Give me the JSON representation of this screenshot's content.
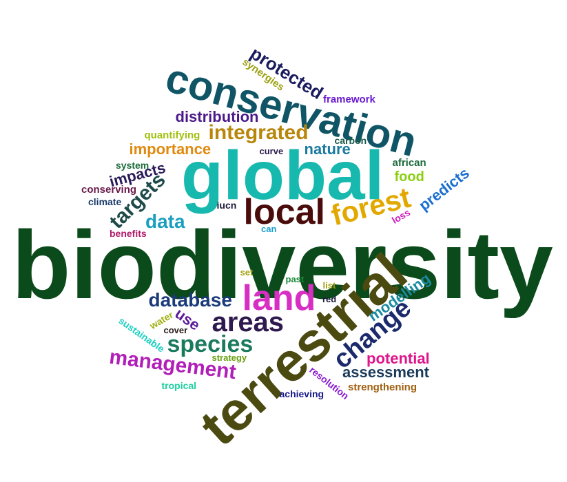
{
  "words": [
    {
      "text": "biodiversity",
      "color": "#0b4a1a"
    },
    {
      "text": "terrestrial",
      "color": "#4b4a10"
    },
    {
      "text": "global",
      "color": "#17b8ae"
    },
    {
      "text": "conservation",
      "color": "#0f5566"
    },
    {
      "text": "land",
      "color": "#d72fc3"
    },
    {
      "text": "local",
      "color": "#4a0b0b"
    },
    {
      "text": "areas",
      "color": "#2e1a4e"
    },
    {
      "text": "forest",
      "color": "#e3a800"
    },
    {
      "text": "change",
      "color": "#1a2a6b"
    },
    {
      "text": "species",
      "color": "#1a7a5e"
    },
    {
      "text": "management",
      "color": "#b11fb8"
    },
    {
      "text": "integrated",
      "color": "#b8860b"
    },
    {
      "text": "database",
      "color": "#1a3a7a"
    },
    {
      "text": "protected",
      "color": "#1a1a5e"
    },
    {
      "text": "targets",
      "color": "#1f4a4a"
    },
    {
      "text": "data",
      "color": "#1a9fbf"
    },
    {
      "text": "distribution",
      "color": "#4a1a8a"
    },
    {
      "text": "modelling",
      "color": "#1a8aa0"
    },
    {
      "text": "assessment",
      "color": "#1a3a5a"
    },
    {
      "text": "potential",
      "color": "#e0148a"
    },
    {
      "text": "predicts",
      "color": "#1a6fd0"
    },
    {
      "text": "importance",
      "color": "#e08a10"
    },
    {
      "text": "nature",
      "color": "#1a7aa0"
    },
    {
      "text": "impacts",
      "color": "#2a1a5a"
    },
    {
      "text": "use",
      "color": "#5a1a9a"
    },
    {
      "text": "food",
      "color": "#8ad010"
    },
    {
      "text": "framework",
      "color": "#6a1ad0"
    },
    {
      "text": "synergies",
      "color": "#9aa010"
    },
    {
      "text": "quantifying",
      "color": "#a0c010"
    },
    {
      "text": "carbon",
      "color": "#1a5a4a"
    },
    {
      "text": "curve",
      "color": "#2a1a4a"
    },
    {
      "text": "african",
      "color": "#1a6a3a"
    },
    {
      "text": "system",
      "color": "#1a6a3a"
    },
    {
      "text": "conserving",
      "color": "#6a1a4a"
    },
    {
      "text": "climate",
      "color": "#1a3a6a"
    },
    {
      "text": "iucn",
      "color": "#1a1a3a"
    },
    {
      "text": "can",
      "color": "#1a9fd0"
    },
    {
      "text": "loss",
      "color": "#d01ac0"
    },
    {
      "text": "benefits",
      "color": "#b01a6a"
    },
    {
      "text": "set",
      "color": "#a0a010"
    },
    {
      "text": "past",
      "color": "#1a8a3a"
    },
    {
      "text": "list",
      "color": "#a0a010"
    },
    {
      "text": "red",
      "color": "#1a1a3a"
    },
    {
      "text": "sustainable",
      "color": "#1ad0c0"
    },
    {
      "text": "water",
      "color": "#a0b010"
    },
    {
      "text": "cover",
      "color": "#2a1a1a"
    },
    {
      "text": "strategy",
      "color": "#6aa010"
    },
    {
      "text": "resolution",
      "color": "#8a1ad0"
    },
    {
      "text": "strengthening",
      "color": "#a06010"
    },
    {
      "text": "tropical",
      "color": "#1ad0a0"
    },
    {
      "text": "achieving",
      "color": "#1a1a8a"
    }
  ]
}
